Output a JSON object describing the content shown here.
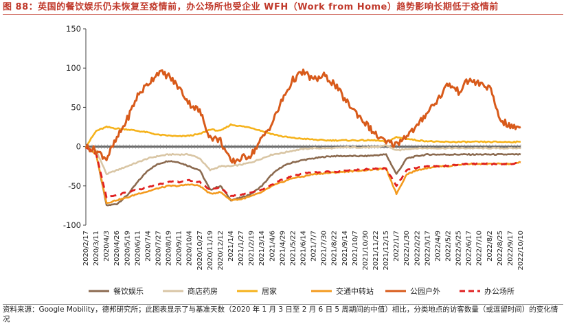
{
  "header": {
    "title": "图 88：英国的餐饮娱乐仍未恢复至疫情前，办公场所也受企业 WFH（Work from Home）趋势影响长期低于疫情前"
  },
  "footer": {
    "source": "资料来源：Google Mobility，德邦研究所；此图表显示了与基准天数（2020 年 1 月 3 日至 2 月 6 日 5 周期间的中值）相比，分类地点的访客数量（或逗留时间）的变化情况"
  },
  "chart_data": {
    "type": "line",
    "ylim": [
      -100,
      150
    ],
    "yticks": [
      -100,
      -50,
      0,
      50,
      100,
      150
    ],
    "x_tick_labels": [
      "2020/2/17",
      "2020/3/11",
      "2020/4/3",
      "2020/4/26",
      "2020/5/19",
      "2020/6/11",
      "2020/7/4",
      "2020/7/27",
      "2020/8/19",
      "2020/9/11",
      "2020/10/4",
      "2020/10/27",
      "2020/11/19",
      "2020/12/12",
      "2021/1/4",
      "2021/1/27",
      "2021/2/19",
      "2021/3/14",
      "2021/4/6",
      "2021/4/29",
      "2021/5/22",
      "2021/6/14",
      "2021/7/7",
      "2021/7/30",
      "2021/8/22",
      "2021/9/14",
      "2021/10/7",
      "2021/10/30",
      "2021/11/22",
      "2021/12/15",
      "2022/1/7",
      "2022/1/30",
      "2022/2/22",
      "2022/3/17",
      "2022/4/9",
      "2022/5/2",
      "2022/5/25",
      "2022/6/17",
      "2022/7/10",
      "2022/8/2",
      "2022/8/25",
      "2022/9/17",
      "2022/10/10"
    ],
    "grid": false,
    "legend_position": "bottom",
    "series": [
      {
        "name": "餐饮娱乐",
        "color": "#8B6A4F",
        "style": "solid",
        "values": [
          0,
          -10,
          -75,
          -73,
          -62,
          -45,
          -30,
          -22,
          -18,
          -20,
          -25,
          -30,
          -55,
          -50,
          -68,
          -65,
          -60,
          -50,
          -35,
          -25,
          -20,
          -17,
          -15,
          -13,
          -12,
          -12,
          -12,
          -12,
          -11,
          -10,
          -35,
          -15,
          -12,
          -10,
          -10,
          -10,
          -10,
          -10,
          -10,
          -10,
          -10,
          -10,
          -10
        ]
      },
      {
        "name": "商店药房",
        "color": "#D9C6A5",
        "style": "solid",
        "values": [
          0,
          -5,
          -35,
          -30,
          -25,
          -20,
          -15,
          -12,
          -10,
          -10,
          -10,
          -15,
          -30,
          -25,
          -25,
          -23,
          -20,
          -15,
          -10,
          -8,
          -5,
          -3,
          -2,
          -2,
          -2,
          -1,
          -1,
          -1,
          -1,
          2,
          -5,
          -3,
          -2,
          -2,
          -2,
          -2,
          -2,
          -2,
          -2,
          -2,
          -2,
          -2,
          -2
        ]
      },
      {
        "name": "居家",
        "color": "#F5B21B",
        "style": "solid",
        "values": [
          0,
          20,
          25,
          23,
          22,
          20,
          18,
          15,
          14,
          13,
          14,
          16,
          22,
          20,
          28,
          26,
          24,
          20,
          16,
          13,
          11,
          10,
          9,
          8,
          8,
          8,
          8,
          8,
          8,
          6,
          12,
          10,
          8,
          7,
          6,
          6,
          6,
          6,
          6,
          6,
          6,
          6,
          6
        ]
      },
      {
        "name": "交通中转站",
        "color": "#F39A1E",
        "style": "solid",
        "values": [
          0,
          -10,
          -72,
          -68,
          -65,
          -60,
          -57,
          -53,
          -50,
          -50,
          -48,
          -50,
          -60,
          -58,
          -68,
          -67,
          -63,
          -58,
          -50,
          -45,
          -40,
          -38,
          -35,
          -34,
          -33,
          -32,
          -31,
          -30,
          -29,
          -28,
          -60,
          -35,
          -30,
          -27,
          -25,
          -25,
          -23,
          -22,
          -22,
          -22,
          -22,
          -22,
          -20
        ]
      },
      {
        "name": "公园户外",
        "color": "#D85A1A",
        "style": "solid",
        "values": [
          0,
          -5,
          -15,
          10,
          35,
          65,
          80,
          95,
          90,
          75,
          55,
          45,
          12,
          8,
          -20,
          -15,
          -10,
          10,
          30,
          60,
          85,
          95,
          85,
          90,
          80,
          60,
          45,
          30,
          15,
          5,
          3,
          15,
          25,
          45,
          60,
          80,
          70,
          85,
          80,
          75,
          35,
          25,
          25
        ]
      },
      {
        "name": "办公场所",
        "color": "#E02020",
        "style": "dashed",
        "values": [
          0,
          -10,
          -65,
          -62,
          -58,
          -55,
          -52,
          -48,
          -45,
          -45,
          -43,
          -45,
          -55,
          -52,
          -63,
          -61,
          -58,
          -55,
          -48,
          -42,
          -37,
          -34,
          -33,
          -32,
          -32,
          -31,
          -30,
          -29,
          -28,
          -28,
          -50,
          -30,
          -27,
          -25,
          -25,
          -24,
          -23,
          -22,
          -22,
          -22,
          -22,
          -22,
          -21
        ]
      }
    ]
  }
}
